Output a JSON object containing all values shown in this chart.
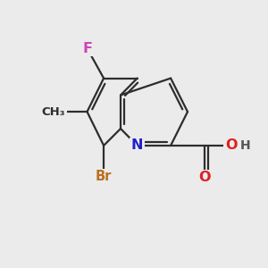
{
  "background_color": "#ebebeb",
  "bond_color": "#2d2d2d",
  "bond_width": 1.6,
  "atom_labels": {
    "N": {
      "color": "#2020cc",
      "fontsize": 11.5
    },
    "Br": {
      "color": "#b87020",
      "fontsize": 10.5
    },
    "F": {
      "color": "#cc44bb",
      "fontsize": 11.5
    },
    "O": {
      "color": "#dd2020",
      "fontsize": 11.5
    },
    "H": {
      "color": "#555555",
      "fontsize": 10.0
    },
    "CH3": {
      "color": "#2d2d2d",
      "fontsize": 9.5
    }
  },
  "figsize": [
    3.0,
    3.0
  ],
  "dpi": 100,
  "xlim": [
    0,
    10
  ],
  "ylim": [
    0,
    10
  ]
}
